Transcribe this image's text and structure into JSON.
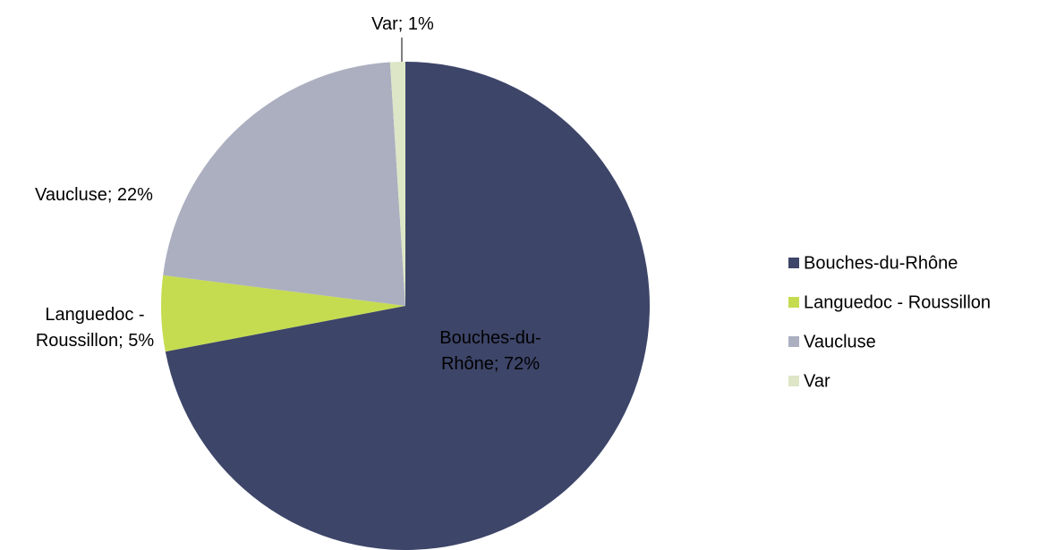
{
  "chart_data": {
    "type": "pie",
    "categories": [
      "Bouches-du-Rhône",
      "Languedoc - Roussillon",
      "Vaucluse",
      "Var"
    ],
    "values": [
      72,
      5,
      22,
      1
    ],
    "value_labels": [
      "Bouches-du-Rhône; 72%",
      "Languedoc - Roussillon; 5%",
      "Vaucluse; 22%",
      "Var; 1%"
    ],
    "colors": [
      "#3d4569",
      "#c5dc50",
      "#abafc0",
      "#dde6c6"
    ],
    "legend": "right"
  }
}
